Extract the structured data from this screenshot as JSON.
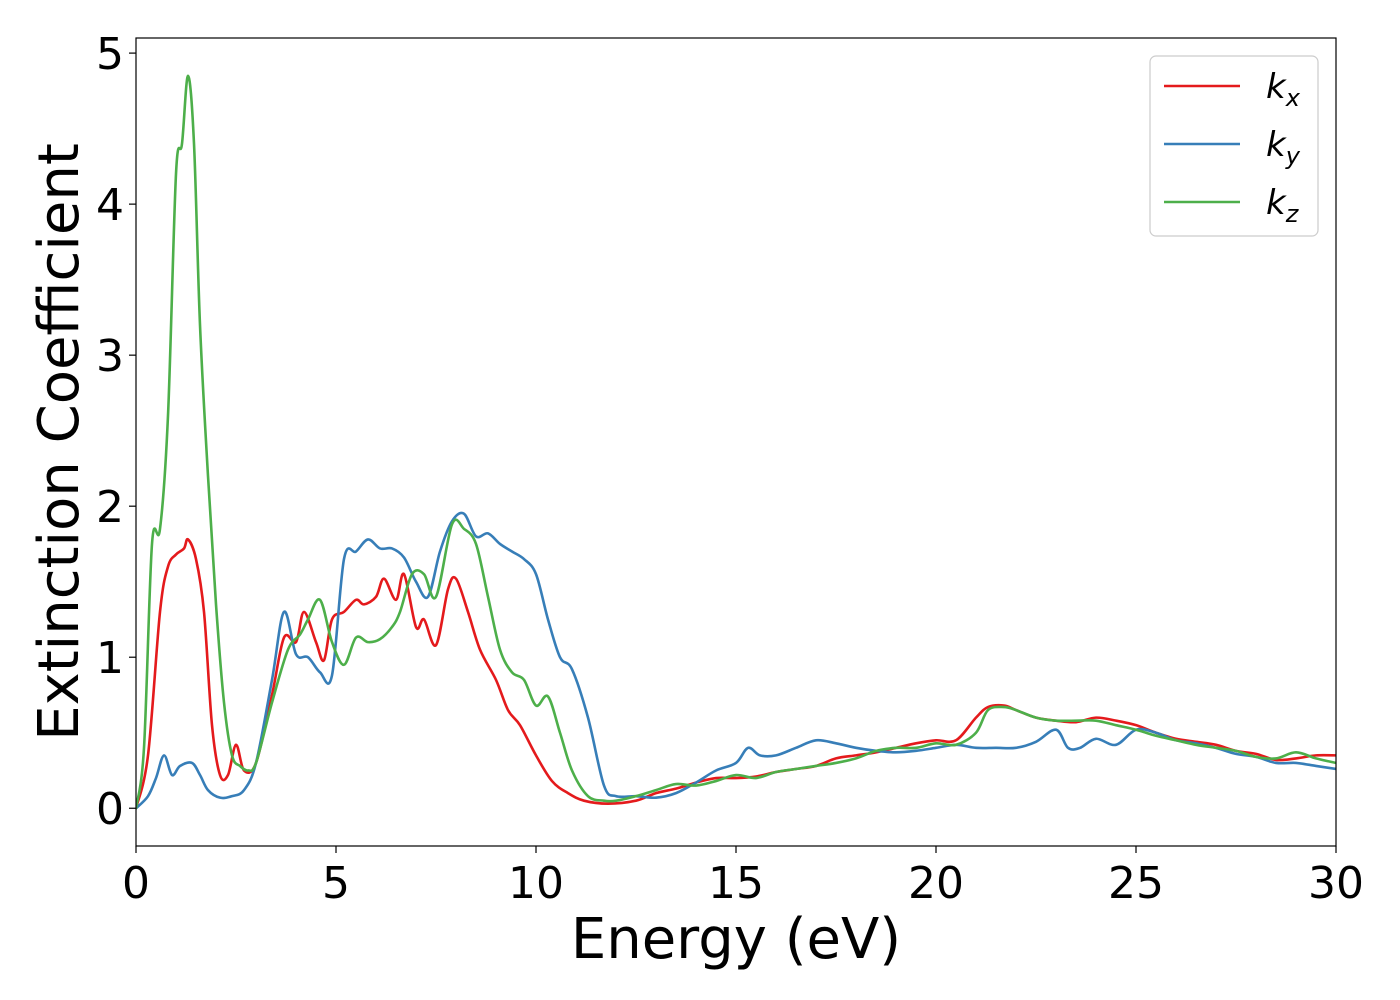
{
  "chart_data": {
    "type": "line",
    "xlabel": "Energy (eV)",
    "ylabel": "Extinction Coefficient",
    "xlim": [
      0,
      30
    ],
    "ylim": [
      -0.25,
      5.1
    ],
    "xticks": [
      0,
      5,
      10,
      15,
      20,
      25,
      30
    ],
    "xtick_labels": [
      "0",
      "5",
      "10",
      "15",
      "20",
      "25",
      "30"
    ],
    "yticks": [
      0,
      1,
      2,
      3,
      4,
      5
    ],
    "ytick_labels": [
      "0",
      "1",
      "2",
      "3",
      "4",
      "5"
    ],
    "grid": false,
    "legend_position": "top-right",
    "series": [
      {
        "name": "k",
        "subscript": "x",
        "color": "#e41a1c",
        "x": [
          0,
          0.3,
          0.6,
          0.8,
          1.0,
          1.2,
          1.3,
          1.5,
          1.7,
          1.9,
          2.1,
          2.3,
          2.5,
          2.7,
          3.0,
          3.4,
          3.7,
          4.0,
          4.2,
          4.5,
          4.7,
          4.9,
          5.2,
          5.5,
          5.7,
          6.0,
          6.2,
          6.5,
          6.7,
          7.0,
          7.2,
          7.5,
          7.8,
          8.0,
          8.3,
          8.6,
          9.0,
          9.3,
          9.6,
          10.0,
          10.4,
          10.8,
          11.2,
          11.8,
          12.5,
          13.0,
          13.5,
          14.0,
          14.5,
          15.0,
          15.5,
          16.0,
          16.5,
          17.0,
          17.5,
          18.0,
          18.5,
          19.0,
          19.5,
          20.0,
          20.5,
          21.0,
          21.3,
          21.7,
          22.0,
          22.5,
          23.0,
          23.5,
          24.0,
          24.5,
          25.0,
          25.5,
          26.0,
          26.5,
          27.0,
          27.5,
          28.0,
          28.5,
          29.0,
          29.5,
          30.0
        ],
        "y": [
          0,
          0.35,
          1.3,
          1.6,
          1.68,
          1.72,
          1.78,
          1.65,
          1.3,
          0.55,
          0.22,
          0.22,
          0.42,
          0.25,
          0.3,
          0.75,
          1.13,
          1.1,
          1.3,
          1.1,
          0.98,
          1.25,
          1.3,
          1.38,
          1.35,
          1.4,
          1.52,
          1.38,
          1.55,
          1.2,
          1.25,
          1.08,
          1.45,
          1.52,
          1.3,
          1.05,
          0.85,
          0.65,
          0.55,
          0.35,
          0.18,
          0.1,
          0.05,
          0.03,
          0.05,
          0.1,
          0.13,
          0.17,
          0.2,
          0.2,
          0.21,
          0.24,
          0.26,
          0.28,
          0.33,
          0.35,
          0.37,
          0.4,
          0.43,
          0.45,
          0.45,
          0.6,
          0.67,
          0.68,
          0.65,
          0.6,
          0.58,
          0.57,
          0.6,
          0.58,
          0.55,
          0.5,
          0.46,
          0.44,
          0.42,
          0.38,
          0.36,
          0.32,
          0.33,
          0.35,
          0.35
        ]
      },
      {
        "name": "k",
        "subscript": "y",
        "color": "#377eb8",
        "x": [
          0,
          0.3,
          0.5,
          0.7,
          0.9,
          1.1,
          1.4,
          1.6,
          1.8,
          2.1,
          2.4,
          2.7,
          3.0,
          3.4,
          3.7,
          4.0,
          4.3,
          4.6,
          4.9,
          5.2,
          5.5,
          5.8,
          6.1,
          6.4,
          6.7,
          7.0,
          7.3,
          7.6,
          7.9,
          8.2,
          8.5,
          8.8,
          9.1,
          9.4,
          9.7,
          10.0,
          10.3,
          10.6,
          10.9,
          11.3,
          11.7,
          12.0,
          12.5,
          13.0,
          13.5,
          14.0,
          14.5,
          15.0,
          15.3,
          15.6,
          16.0,
          16.5,
          17.0,
          17.5,
          18.0,
          18.5,
          19.0,
          19.5,
          20.0,
          20.5,
          21.0,
          21.5,
          22.0,
          22.5,
          23.0,
          23.3,
          23.6,
          24.0,
          24.5,
          25.0,
          25.5,
          26.0,
          26.5,
          27.0,
          27.5,
          28.0,
          28.5,
          29.0,
          29.5,
          30.0
        ],
        "y": [
          0,
          0.08,
          0.2,
          0.35,
          0.22,
          0.28,
          0.3,
          0.22,
          0.12,
          0.07,
          0.08,
          0.12,
          0.3,
          0.85,
          1.3,
          1.02,
          1.0,
          0.9,
          0.88,
          1.65,
          1.7,
          1.78,
          1.72,
          1.72,
          1.66,
          1.5,
          1.4,
          1.7,
          1.9,
          1.95,
          1.8,
          1.82,
          1.75,
          1.7,
          1.65,
          1.55,
          1.25,
          1.0,
          0.92,
          0.6,
          0.15,
          0.08,
          0.08,
          0.07,
          0.1,
          0.17,
          0.25,
          0.3,
          0.4,
          0.35,
          0.35,
          0.4,
          0.45,
          0.43,
          0.4,
          0.38,
          0.37,
          0.38,
          0.4,
          0.42,
          0.4,
          0.4,
          0.4,
          0.44,
          0.52,
          0.4,
          0.4,
          0.46,
          0.42,
          0.52,
          0.5,
          0.45,
          0.43,
          0.4,
          0.36,
          0.34,
          0.3,
          0.3,
          0.28,
          0.26
        ]
      },
      {
        "name": "k",
        "subscript": "z",
        "color": "#4daf4a",
        "x": [
          0,
          0.2,
          0.4,
          0.6,
          0.8,
          1.0,
          1.15,
          1.3,
          1.45,
          1.6,
          1.8,
          2.0,
          2.2,
          2.4,
          2.6,
          2.8,
          3.0,
          3.4,
          3.8,
          4.1,
          4.3,
          4.6,
          4.9,
          5.2,
          5.5,
          5.8,
          6.1,
          6.4,
          6.6,
          6.9,
          7.2,
          7.5,
          7.9,
          8.2,
          8.5,
          8.8,
          9.1,
          9.4,
          9.7,
          10.0,
          10.3,
          10.6,
          10.9,
          11.3,
          11.7,
          12.0,
          12.5,
          13.0,
          13.5,
          14.0,
          14.5,
          15.0,
          15.5,
          16.0,
          16.5,
          17.0,
          17.5,
          18.0,
          18.5,
          19.0,
          19.5,
          20.0,
          20.5,
          21.0,
          21.3,
          21.7,
          22.0,
          22.5,
          23.0,
          23.5,
          24.0,
          24.5,
          25.0,
          25.5,
          26.0,
          26.5,
          27.0,
          27.5,
          28.0,
          28.5,
          29.0,
          29.5,
          30.0
        ],
        "y": [
          0,
          0.4,
          1.75,
          1.85,
          2.6,
          4.2,
          4.4,
          4.85,
          4.4,
          3.2,
          2.2,
          1.35,
          0.7,
          0.35,
          0.28,
          0.25,
          0.3,
          0.7,
          1.05,
          1.15,
          1.25,
          1.38,
          1.1,
          0.95,
          1.13,
          1.1,
          1.12,
          1.2,
          1.3,
          1.55,
          1.55,
          1.4,
          1.88,
          1.85,
          1.75,
          1.4,
          1.05,
          0.9,
          0.85,
          0.68,
          0.74,
          0.5,
          0.25,
          0.08,
          0.05,
          0.05,
          0.08,
          0.12,
          0.16,
          0.15,
          0.18,
          0.22,
          0.2,
          0.24,
          0.26,
          0.28,
          0.3,
          0.33,
          0.38,
          0.4,
          0.4,
          0.43,
          0.42,
          0.5,
          0.65,
          0.67,
          0.65,
          0.6,
          0.58,
          0.58,
          0.58,
          0.55,
          0.52,
          0.48,
          0.45,
          0.42,
          0.4,
          0.38,
          0.34,
          0.33,
          0.37,
          0.33,
          0.3
        ]
      }
    ]
  }
}
